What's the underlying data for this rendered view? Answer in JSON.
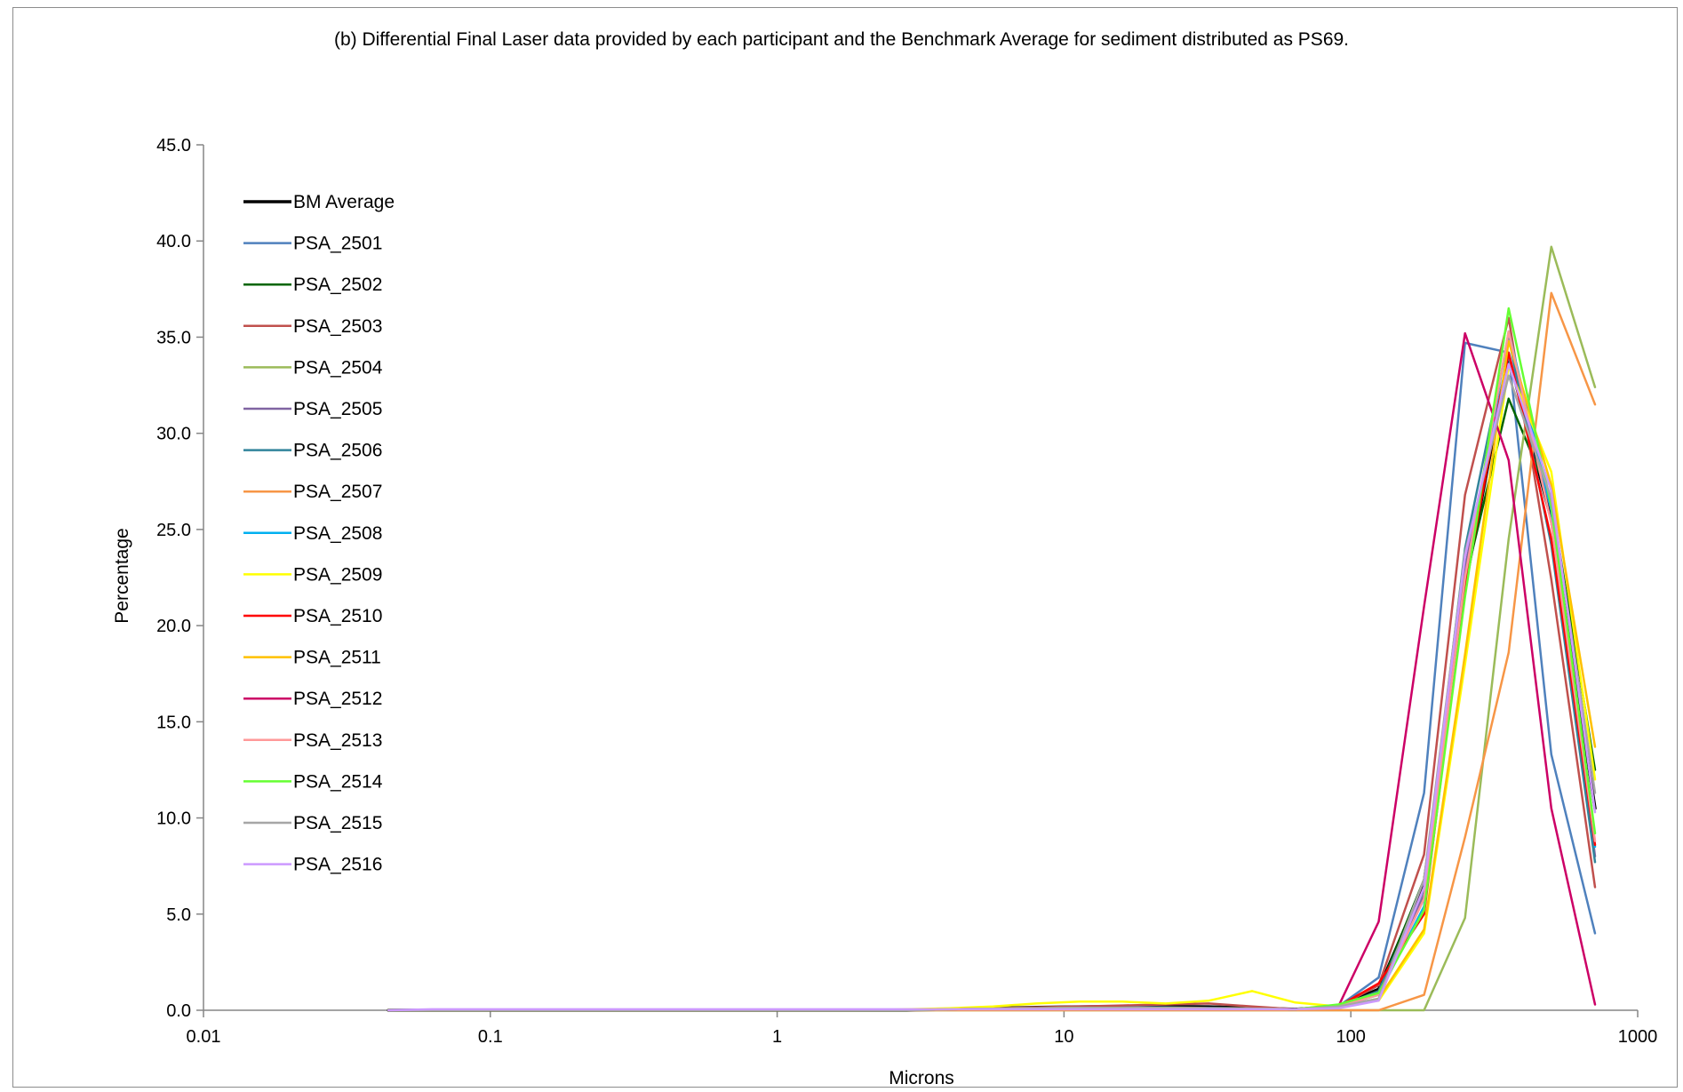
{
  "chart_data": {
    "type": "line",
    "title": "(b) Differential Final Laser data provided by each participant and the Benchmark Average for sediment distributed as PS69.",
    "xlabel": "Microns",
    "ylabel": "Percentage",
    "xscale": "log",
    "xlim": [
      0.01,
      1000
    ],
    "ylim": [
      0,
      45
    ],
    "xticks": [
      {
        "value": 0.01,
        "label": "0.01"
      },
      {
        "value": 0.1,
        "label": "0.1"
      },
      {
        "value": 1,
        "label": "1"
      },
      {
        "value": 10,
        "label": "10"
      },
      {
        "value": 100,
        "label": "100"
      },
      {
        "value": 1000,
        "label": "1000"
      }
    ],
    "yticks": [
      {
        "value": 0,
        "label": "0.0"
      },
      {
        "value": 5,
        "label": "5.0"
      },
      {
        "value": 10,
        "label": "10.0"
      },
      {
        "value": 15,
        "label": "15.0"
      },
      {
        "value": 20,
        "label": "20.0"
      },
      {
        "value": 25,
        "label": "25.0"
      },
      {
        "value": 30,
        "label": "30.0"
      },
      {
        "value": 35,
        "label": "35.0"
      },
      {
        "value": 40,
        "label": "40.0"
      },
      {
        "value": 45,
        "label": "45.0"
      }
    ],
    "grid": false,
    "legend_position": "top-left",
    "x": [
      0.0442,
      0.0625,
      0.0884,
      0.125,
      0.177,
      0.25,
      0.354,
      0.5,
      0.707,
      1,
      1.41,
      2,
      2.83,
      4,
      5.66,
      8,
      11.3,
      16,
      22.6,
      32,
      45.3,
      64,
      90.5,
      125,
      180,
      250,
      355,
      500,
      710
    ],
    "series": [
      {
        "name": "BM Average",
        "color": "#000000",
        "width": 3.5,
        "values": [
          0,
          0,
          0,
          0,
          0,
          0,
          0,
          0,
          0,
          0,
          0,
          0,
          0,
          0.05,
          0.1,
          0.15,
          0.18,
          0.2,
          0.2,
          0.18,
          0.12,
          0.05,
          0.2,
          1.1,
          6.6,
          22.0,
          34.0,
          25.5,
          10.5
        ]
      },
      {
        "name": "PSA_2501",
        "color": "#4F81BD",
        "width": 2.5,
        "values": [
          0,
          0,
          0,
          0,
          0,
          0,
          0,
          0,
          0,
          0,
          0,
          0,
          0,
          0.05,
          0.1,
          0.12,
          0.15,
          0.15,
          0.15,
          0.12,
          0.1,
          0.05,
          0.2,
          1.7,
          11.3,
          34.7,
          34.2,
          13.3,
          4.0
        ]
      },
      {
        "name": "PSA_2502",
        "color": "#006400",
        "width": 2.5,
        "values": [
          0,
          0,
          0,
          0,
          0,
          0,
          0,
          0,
          0,
          0,
          0,
          0,
          0,
          0.05,
          0.1,
          0.12,
          0.12,
          0.12,
          0.12,
          0.1,
          0.08,
          0.05,
          0.15,
          1.0,
          6.8,
          22.3,
          31.8,
          26.5,
          12.5
        ]
      },
      {
        "name": "PSA_2503",
        "color": "#C0504D",
        "width": 2.5,
        "values": [
          0,
          0,
          0,
          0,
          0,
          0,
          0,
          0,
          0,
          0,
          0,
          0,
          0,
          0.05,
          0.1,
          0.15,
          0.2,
          0.25,
          0.3,
          0.35,
          0.2,
          0.05,
          0.2,
          1.3,
          8.1,
          26.8,
          36.0,
          22.4,
          6.4
        ]
      },
      {
        "name": "PSA_2504",
        "color": "#9BBB59",
        "width": 2.5,
        "values": [
          0,
          0,
          0,
          0,
          0,
          0,
          0,
          0,
          0,
          0,
          0,
          0,
          0,
          0,
          0,
          0,
          0,
          0,
          0,
          0,
          0,
          0,
          0,
          0,
          0,
          4.8,
          24.5,
          39.7,
          32.4
        ]
      },
      {
        "name": "PSA_2505",
        "color": "#8064A2",
        "width": 2.5,
        "values": [
          0,
          0,
          0,
          0,
          0,
          0,
          0,
          0,
          0,
          0,
          0,
          0,
          0,
          0.05,
          0.08,
          0.1,
          0.12,
          0.12,
          0.12,
          0.1,
          0.08,
          0.05,
          0.2,
          0.9,
          6.0,
          23.0,
          34.2,
          26.0,
          8.0
        ]
      },
      {
        "name": "PSA_2506",
        "color": "#31849B",
        "width": 2.5,
        "values": [
          0,
          0,
          0,
          0,
          0,
          0,
          0,
          0,
          0,
          0,
          0,
          0,
          0,
          0.05,
          0.08,
          0.1,
          0.12,
          0.12,
          0.12,
          0.1,
          0.08,
          0.05,
          0.2,
          1.0,
          6.3,
          24.0,
          35.0,
          24.2,
          7.7
        ]
      },
      {
        "name": "PSA_2507",
        "color": "#F79646",
        "width": 2.5,
        "values": [
          0,
          0,
          0,
          0,
          0,
          0,
          0,
          0,
          0,
          0,
          0,
          0,
          0,
          0,
          0,
          0,
          0,
          0,
          0,
          0,
          0,
          0,
          0,
          0,
          0.8,
          9.0,
          18.6,
          37.3,
          31.5
        ]
      },
      {
        "name": "PSA_2508",
        "color": "#00B0F0",
        "width": 2.5,
        "values": [
          0,
          0,
          0,
          0,
          0,
          0,
          0,
          0,
          0,
          0,
          0,
          0,
          0,
          0.05,
          0.08,
          0.1,
          0.12,
          0.12,
          0.12,
          0.1,
          0.08,
          0.05,
          0.2,
          0.8,
          5.4,
          22.0,
          35.3,
          26.0,
          8.5
        ]
      },
      {
        "name": "PSA_2509",
        "color": "#FFFF00",
        "width": 2.5,
        "values": [
          0,
          0,
          0,
          0,
          0,
          0,
          0,
          0,
          0,
          0,
          0,
          0,
          0.05,
          0.1,
          0.2,
          0.35,
          0.45,
          0.45,
          0.35,
          0.5,
          1.0,
          0.4,
          0.2,
          0.5,
          4.0,
          18.0,
          33.5,
          28.0,
          12.0
        ]
      },
      {
        "name": "PSA_2510",
        "color": "#FF0000",
        "width": 2.5,
        "values": [
          0,
          0,
          0,
          0,
          0,
          0,
          0,
          0,
          0,
          0,
          0,
          0,
          0,
          0.05,
          0.08,
          0.1,
          0.12,
          0.12,
          0.12,
          0.1,
          0.08,
          0.05,
          0.2,
          1.4,
          5.0,
          22.0,
          34.2,
          24.5,
          8.6
        ]
      },
      {
        "name": "PSA_2511",
        "color": "#FFC000",
        "width": 2.5,
        "values": [
          0,
          0,
          0,
          0,
          0,
          0,
          0,
          0,
          0,
          0,
          0,
          0,
          0,
          0.05,
          0.08,
          0.1,
          0.12,
          0.12,
          0.12,
          0.1,
          0.08,
          0.05,
          0.2,
          0.6,
          4.2,
          18.5,
          34.8,
          27.3,
          13.7
        ]
      },
      {
        "name": "PSA_2512",
        "color": "#CC0066",
        "width": 2.5,
        "values": [
          0,
          0,
          0,
          0,
          0,
          0,
          0,
          0,
          0,
          0,
          0,
          0,
          0,
          0.05,
          0.08,
          0.1,
          0.12,
          0.12,
          0.12,
          0.1,
          0.08,
          0.05,
          0.2,
          4.6,
          21.0,
          35.2,
          28.6,
          10.5,
          0.3
        ]
      },
      {
        "name": "PSA_2513",
        "color": "#FF9999",
        "width": 2.5,
        "values": [
          0,
          0,
          0,
          0,
          0,
          0,
          0,
          0,
          0,
          0,
          0,
          0,
          0,
          0.05,
          0.08,
          0.1,
          0.12,
          0.12,
          0.12,
          0.1,
          0.08,
          0.05,
          0.2,
          0.8,
          5.8,
          22.5,
          35.3,
          25.3,
          8.8
        ]
      },
      {
        "name": "PSA_2514",
        "color": "#66FF33",
        "width": 2.5,
        "values": [
          0,
          0,
          0,
          0,
          0,
          0,
          0,
          0,
          0,
          0,
          0,
          0,
          0,
          0.05,
          0.08,
          0.1,
          0.12,
          0.12,
          0.12,
          0.1,
          0.08,
          0.05,
          0.3,
          0.9,
          5.2,
          21.5,
          36.5,
          26.2,
          9.2
        ]
      },
      {
        "name": "PSA_2515",
        "color": "#A6A6A6",
        "width": 2.5,
        "values": [
          0,
          0,
          0,
          0,
          0,
          0,
          0,
          0,
          0,
          0,
          0,
          0,
          0,
          0.05,
          0.08,
          0.1,
          0.12,
          0.12,
          0.12,
          0.1,
          0.08,
          0.05,
          0.2,
          0.6,
          6.8,
          23.8,
          33.0,
          26.6,
          11.3
        ]
      },
      {
        "name": "PSA_2516",
        "color": "#CC99FF",
        "width": 2.5,
        "values": [
          0,
          0.05,
          0.05,
          0.05,
          0.05,
          0.05,
          0.05,
          0.05,
          0.05,
          0.05,
          0.05,
          0.05,
          0.05,
          0.05,
          0.05,
          0.05,
          0.05,
          0.05,
          0.05,
          0.05,
          0.05,
          0.05,
          0.1,
          0.5,
          6.4,
          23.6,
          33.6,
          27.0,
          10.3
        ]
      }
    ]
  }
}
